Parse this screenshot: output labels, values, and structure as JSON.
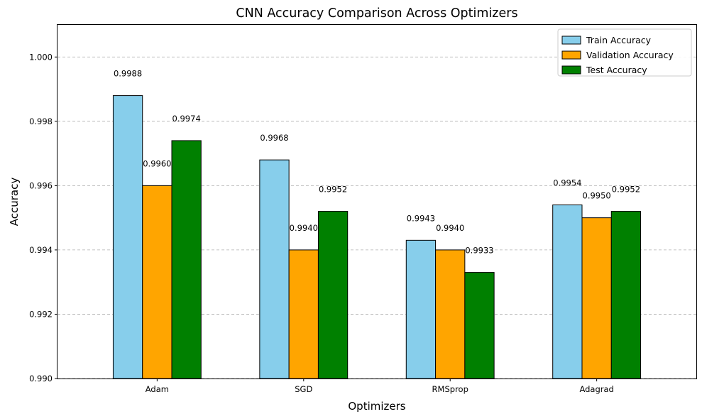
{
  "chart_data": {
    "type": "bar",
    "title": "CNN Accuracy Comparison Across Optimizers",
    "xlabel": "Optimizers",
    "ylabel": "Accuracy",
    "categories": [
      "Adam",
      "SGD",
      "RMSprop",
      "Adagrad"
    ],
    "series": [
      {
        "name": "Train Accuracy",
        "color": "#87ceeb",
        "values": [
          0.9988,
          0.9968,
          0.9943,
          0.9954
        ],
        "labels": [
          "0.9988",
          "0.9968",
          "0.9943",
          "0.9954"
        ]
      },
      {
        "name": "Validation Accuracy",
        "color": "#ffa500",
        "values": [
          0.996,
          0.994,
          0.994,
          0.995
        ],
        "labels": [
          "0.9960",
          "0.9940",
          "0.9940",
          "0.9950"
        ]
      },
      {
        "name": "Test Accuracy",
        "color": "#008000",
        "values": [
          0.9974,
          0.9952,
          0.9933,
          0.9952
        ],
        "labels": [
          "0.9974",
          "0.9952",
          "0.9933",
          "0.9952"
        ]
      }
    ],
    "ylim": [
      0.99,
      1.001
    ],
    "yticks": [
      0.99,
      0.992,
      0.994,
      0.996,
      0.998,
      1.0
    ],
    "ytick_labels": [
      "0.990",
      "0.992",
      "0.994",
      "0.996",
      "0.998",
      "1.000"
    ],
    "grid": "y-dashed",
    "legend_position": "top-right"
  }
}
